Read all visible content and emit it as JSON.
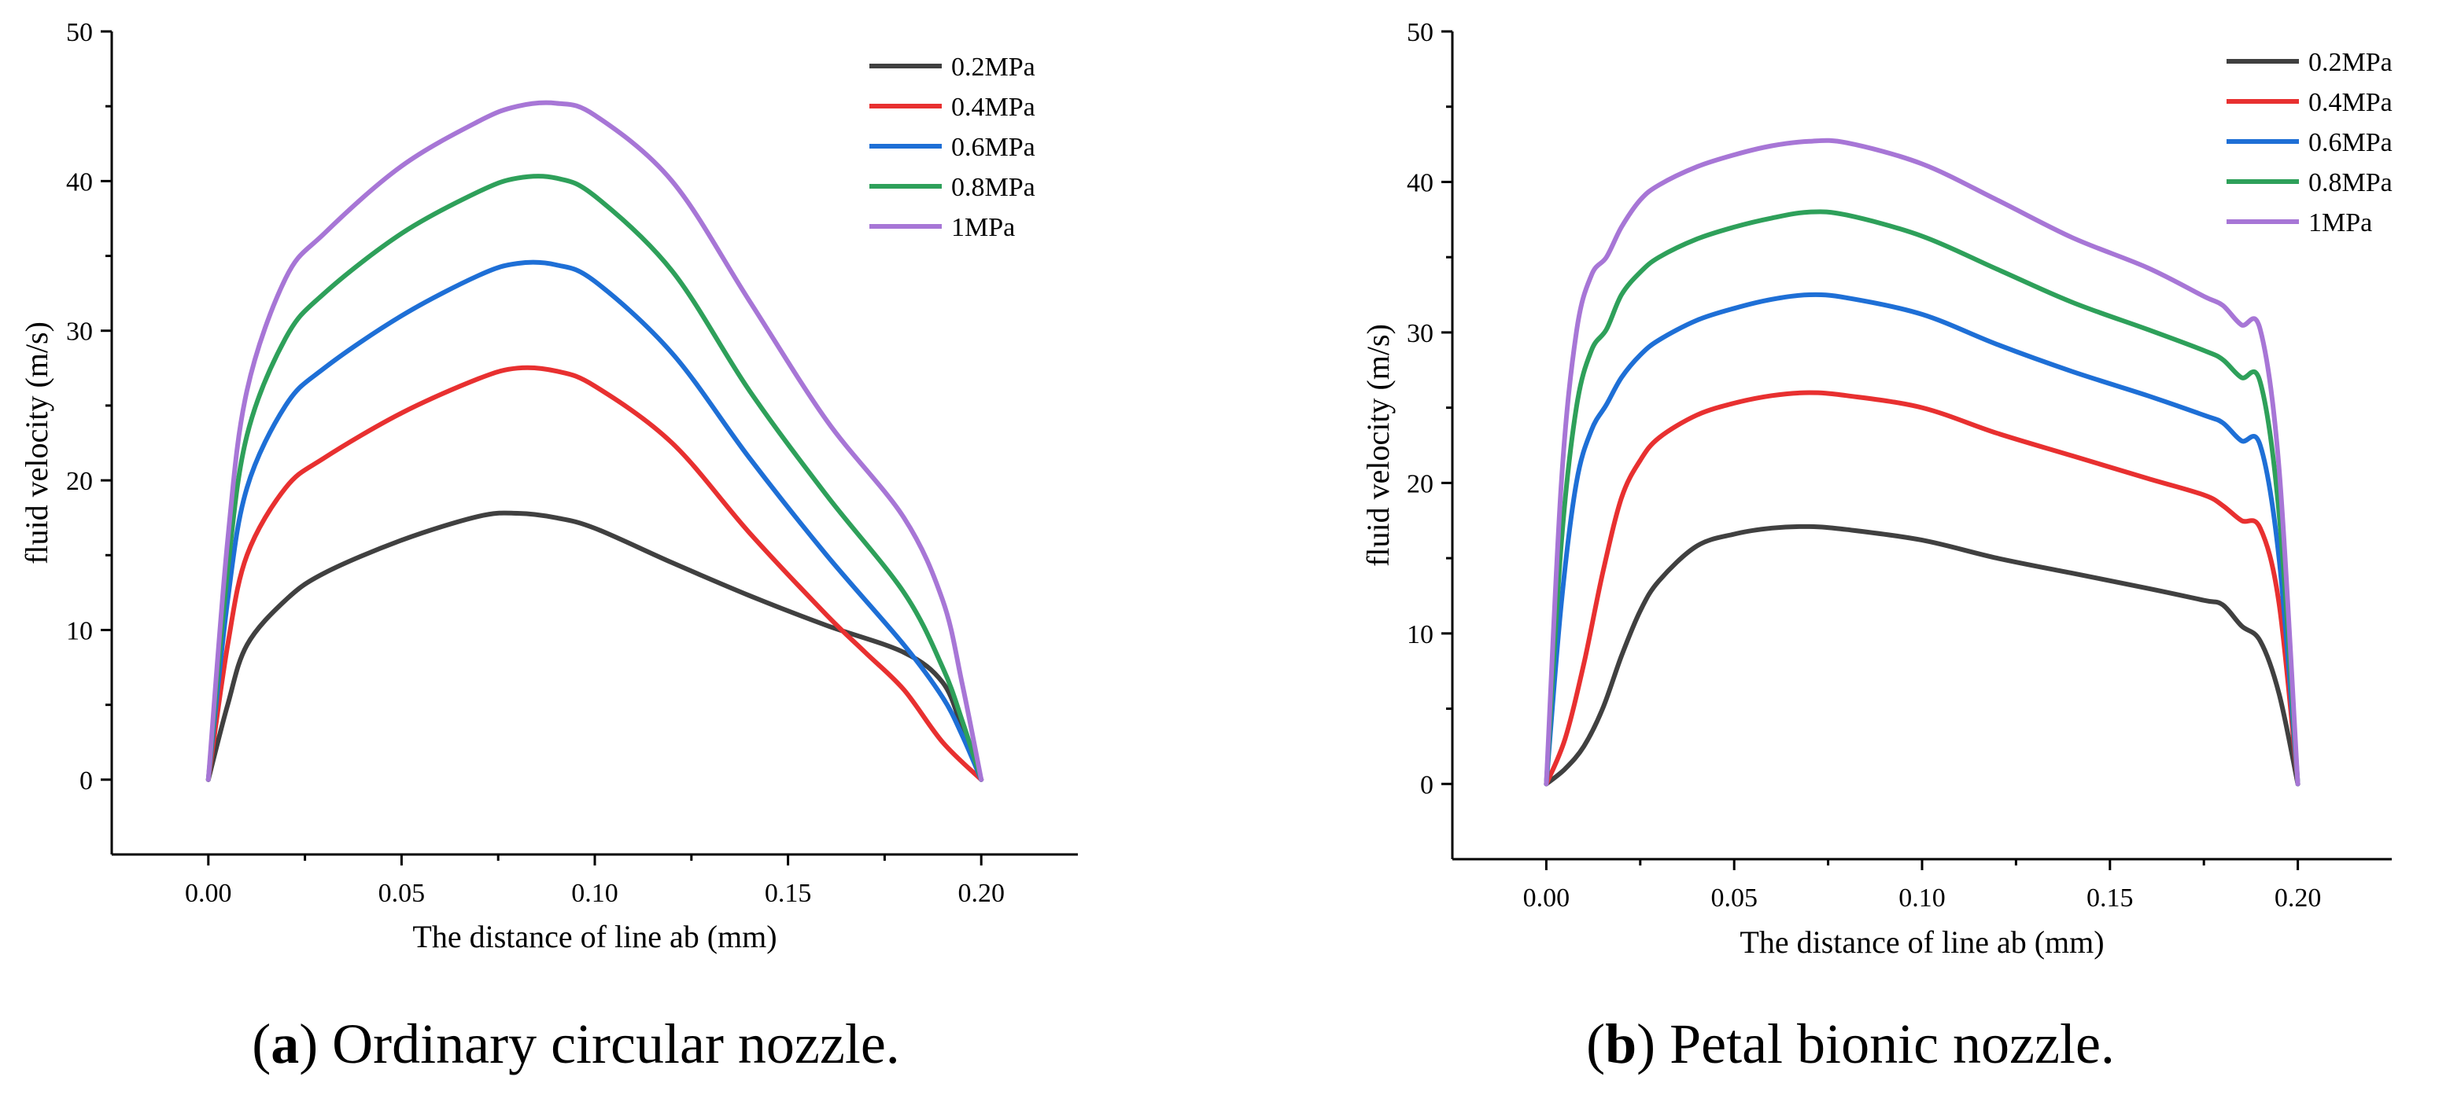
{
  "chart_data": [
    {
      "type": "line",
      "caption_letter": "a",
      "caption_text": "Ordinary circular nozzle.",
      "xlabel": "The distance of line ab (mm)",
      "ylabel": "fluid velocity (m/s)",
      "xlim": [
        -0.025,
        0.225
      ],
      "ylim": [
        -5,
        50
      ],
      "xticks": [
        "0.00",
        "0.05",
        "0.10",
        "0.15",
        "0.20"
      ],
      "yticks": [
        "0",
        "10",
        "20",
        "30",
        "40",
        "50"
      ],
      "legend_position": "top-right",
      "series": [
        {
          "name": "0.2MPa",
          "color": "#404040",
          "x": [
            0,
            0.005,
            0.01,
            0.02,
            0.03,
            0.05,
            0.07,
            0.08,
            0.09,
            0.1,
            0.12,
            0.14,
            0.16,
            0.18,
            0.19,
            0.195,
            0.2
          ],
          "y": [
            0,
            5,
            9,
            12,
            13.8,
            16,
            17.6,
            17.8,
            17.5,
            16.8,
            14.5,
            12.3,
            10.3,
            8.5,
            6.5,
            3.5,
            0
          ]
        },
        {
          "name": "0.4MPa",
          "color": "#e83030",
          "x": [
            0,
            0.005,
            0.01,
            0.02,
            0.03,
            0.05,
            0.07,
            0.08,
            0.09,
            0.1,
            0.12,
            0.14,
            0.16,
            0.17,
            0.18,
            0.19,
            0.2
          ],
          "y": [
            0,
            9,
            15,
            19.5,
            21.5,
            24.5,
            26.8,
            27.5,
            27.3,
            26.3,
            22.5,
            16.5,
            11,
            8.5,
            6,
            2.5,
            0
          ]
        },
        {
          "name": "0.6MPa",
          "color": "#1e6fd6",
          "x": [
            0,
            0.005,
            0.01,
            0.02,
            0.03,
            0.05,
            0.07,
            0.08,
            0.09,
            0.1,
            0.12,
            0.14,
            0.16,
            0.18,
            0.19,
            0.195,
            0.2
          ],
          "y": [
            0,
            12,
            19.5,
            25,
            27.5,
            31,
            33.7,
            34.5,
            34.4,
            33.3,
            28.5,
            21.5,
            15,
            9,
            5.5,
            3,
            0
          ]
        },
        {
          "name": "0.8MPa",
          "color": "#2ea05a",
          "x": [
            0,
            0.005,
            0.01,
            0.02,
            0.03,
            0.05,
            0.07,
            0.08,
            0.09,
            0.1,
            0.12,
            0.14,
            0.16,
            0.18,
            0.19,
            0.195,
            0.2
          ],
          "y": [
            0,
            14,
            23,
            29.5,
            32.5,
            36.5,
            39.3,
            40.2,
            40.2,
            39,
            34,
            26,
            19,
            12.5,
            7.5,
            4,
            0
          ]
        },
        {
          "name": "1MPa",
          "color": "#a776d6",
          "x": [
            0,
            0.005,
            0.01,
            0.02,
            0.03,
            0.05,
            0.07,
            0.08,
            0.09,
            0.1,
            0.12,
            0.14,
            0.16,
            0.18,
            0.19,
            0.195,
            0.2
          ],
          "y": [
            0,
            16,
            26,
            33.5,
            36.5,
            41,
            44,
            45,
            45.2,
            44.4,
            40,
            32,
            24,
            17.5,
            12,
            6.5,
            0
          ]
        }
      ]
    },
    {
      "type": "line",
      "caption_letter": "b",
      "caption_text": "Petal bionic nozzle.",
      "xlabel": "The distance of line ab (mm)",
      "ylabel": "fluid velocity (m/s)",
      "xlim": [
        -0.025,
        0.225
      ],
      "ylim": [
        -5,
        50
      ],
      "xticks": [
        "0.00",
        "0.05",
        "0.10",
        "0.15",
        "0.20"
      ],
      "yticks": [
        "0",
        "10",
        "20",
        "30",
        "40",
        "50"
      ],
      "legend_position": "top-right",
      "series": [
        {
          "name": "0.2MPa",
          "color": "#404040",
          "x": [
            0,
            0.005,
            0.01,
            0.015,
            0.02,
            0.025,
            0.03,
            0.04,
            0.05,
            0.06,
            0.07,
            0.08,
            0.1,
            0.12,
            0.14,
            0.16,
            0.175,
            0.18,
            0.185,
            0.19,
            0.195,
            0.2
          ],
          "y": [
            0,
            1,
            2.5,
            5,
            8.5,
            11.5,
            13.5,
            15.8,
            16.6,
            17,
            17.1,
            16.9,
            16.2,
            15,
            14,
            13,
            12.2,
            11.9,
            10.5,
            9.5,
            6,
            0
          ]
        },
        {
          "name": "0.4MPa",
          "color": "#e83030",
          "x": [
            0,
            0.005,
            0.01,
            0.015,
            0.02,
            0.025,
            0.03,
            0.04,
            0.05,
            0.06,
            0.07,
            0.08,
            0.1,
            0.12,
            0.14,
            0.16,
            0.175,
            0.18,
            0.185,
            0.19,
            0.195,
            0.2
          ],
          "y": [
            0,
            3,
            8,
            14,
            19,
            21.5,
            23,
            24.5,
            25.3,
            25.8,
            26,
            25.8,
            25,
            23.3,
            21.8,
            20.3,
            19.2,
            18.5,
            17.5,
            17,
            12,
            0
          ]
        },
        {
          "name": "0.6MPa",
          "color": "#1e6fd6",
          "x": [
            0,
            0.004,
            0.008,
            0.012,
            0.016,
            0.02,
            0.025,
            0.03,
            0.04,
            0.05,
            0.06,
            0.07,
            0.08,
            0.1,
            0.12,
            0.14,
            0.16,
            0.175,
            0.18,
            0.185,
            0.19,
            0.195,
            0.2
          ],
          "y": [
            0,
            12,
            20,
            23.5,
            25.2,
            27,
            28.5,
            29.5,
            30.8,
            31.6,
            32.2,
            32.5,
            32.3,
            31.2,
            29.2,
            27.4,
            25.8,
            24.5,
            24,
            22.8,
            22.5,
            15,
            0
          ]
        },
        {
          "name": "0.8MPa",
          "color": "#2ea05a",
          "x": [
            0,
            0.004,
            0.008,
            0.012,
            0.016,
            0.02,
            0.025,
            0.03,
            0.04,
            0.05,
            0.06,
            0.07,
            0.08,
            0.1,
            0.12,
            0.14,
            0.16,
            0.175,
            0.18,
            0.185,
            0.19,
            0.195,
            0.2
          ],
          "y": [
            0,
            16,
            25,
            28.8,
            30.2,
            32.5,
            34,
            35,
            36.2,
            37,
            37.6,
            38,
            37.8,
            36.4,
            34.2,
            32,
            30.2,
            28.8,
            28.2,
            27,
            26.7,
            18,
            0
          ]
        },
        {
          "name": "1MPa",
          "color": "#a776d6",
          "x": [
            0,
            0.004,
            0.008,
            0.012,
            0.016,
            0.02,
            0.025,
            0.03,
            0.04,
            0.05,
            0.06,
            0.07,
            0.08,
            0.1,
            0.12,
            0.14,
            0.16,
            0.175,
            0.18,
            0.185,
            0.19,
            0.195,
            0.2
          ],
          "y": [
            0,
            20,
            30,
            33.8,
            35,
            37,
            38.8,
            39.8,
            41,
            41.8,
            42.4,
            42.7,
            42.6,
            41.2,
            38.8,
            36.3,
            34.3,
            32.4,
            31.8,
            30.5,
            30.2,
            21,
            0
          ]
        }
      ]
    }
  ]
}
